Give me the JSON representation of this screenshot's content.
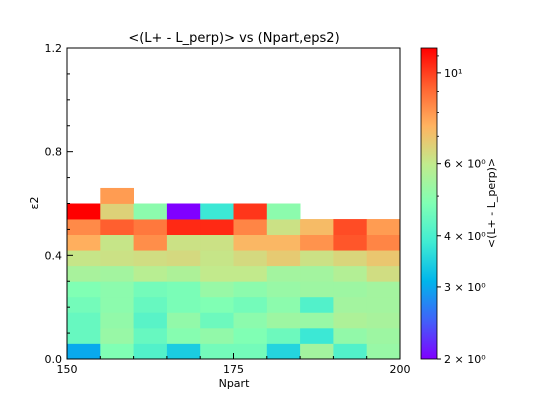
{
  "chart_data": {
    "type": "heatmap",
    "title": "<(L+ - L_perp)> vs (Npart,eps2)",
    "xlabel": "Npart",
    "ylabel": "ε2",
    "xlim": [
      150,
      200
    ],
    "ylim": [
      0.0,
      1.2
    ],
    "x_ticks": [
      150,
      175,
      200
    ],
    "x_tick_labels": [
      "150",
      "175",
      "200"
    ],
    "y_ticks": [
      0.0,
      0.4,
      0.8,
      1.2
    ],
    "y_tick_labels": [
      "0.0",
      "0.4",
      "0.8",
      "1.2"
    ],
    "x_bin_edges": [
      150,
      155,
      160,
      165,
      170,
      175,
      180,
      185,
      190,
      195,
      200
    ],
    "y_bin_edges": [
      0.0,
      0.06,
      0.12,
      0.18,
      0.24,
      0.3,
      0.36,
      0.42,
      0.48,
      0.54,
      0.6,
      0.66
    ],
    "colorbar": {
      "label": "<(L+ - L_perp)>",
      "scale": "log",
      "range": [
        2,
        11.5
      ],
      "ticks": [
        {
          "value": 2,
          "label": "2 × 10⁰"
        },
        {
          "value": 3,
          "label": "3 × 10⁰"
        },
        {
          "value": 4,
          "label": "4 × 10⁰"
        },
        {
          "value": 6,
          "label": "6 × 10⁰"
        },
        {
          "value": 10,
          "label": "10¹"
        }
      ],
      "colormap": "rainbow"
    },
    "z": [
      [
        3.0,
        4.8,
        4.1,
        3.4,
        4.6,
        4.6,
        3.5,
        5.4,
        4.1,
        5.2
      ],
      [
        4.4,
        5.2,
        4.4,
        4.9,
        5.1,
        4.8,
        4.5,
        3.8,
        5.1,
        5.3
      ],
      [
        4.4,
        5.1,
        4.2,
        5.1,
        4.5,
        5.0,
        5.3,
        5.2,
        5.6,
        5.5
      ],
      [
        4.6,
        5.0,
        4.4,
        4.7,
        4.8,
        4.6,
        5.0,
        4.1,
        5.4,
        5.4
      ],
      [
        4.8,
        5.0,
        4.6,
        4.7,
        5.2,
        5.0,
        5.2,
        5.3,
        5.3,
        5.4
      ],
      [
        5.5,
        5.4,
        5.8,
        5.6,
        6.0,
        6.0,
        5.4,
        5.4,
        5.7,
        6.3
      ],
      [
        6.1,
        6.2,
        6.3,
        6.4,
        6.1,
        6.4,
        6.8,
        6.2,
        6.5,
        6.9
      ],
      [
        7.5,
        6.1,
        8.2,
        6.2,
        6.2,
        7.3,
        7.3,
        8.1,
        9.5,
        8.4
      ],
      [
        8.3,
        9.3,
        8.7,
        10.5,
        10.5,
        8.4,
        6.2,
        7.2,
        9.7,
        7.9
      ],
      [
        11.8,
        6.6,
        5.0,
        2.0,
        3.8,
        10.2,
        5.0,
        null,
        null,
        null
      ],
      [
        null,
        7.9,
        null,
        null,
        null,
        null,
        null,
        null,
        null,
        null
      ]
    ]
  }
}
